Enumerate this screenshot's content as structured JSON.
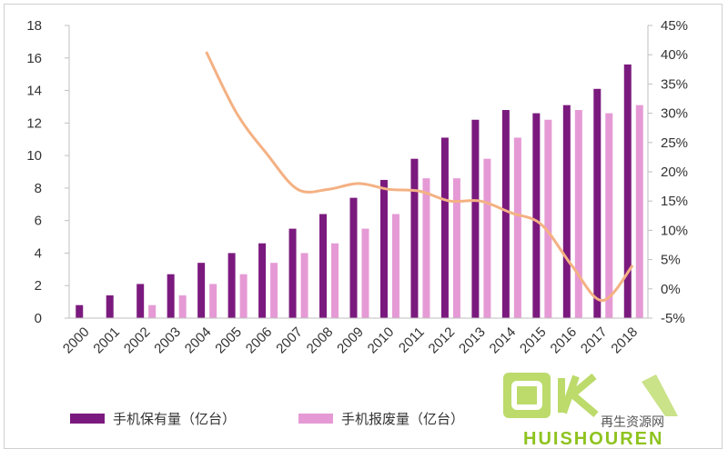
{
  "chart_data": {
    "type": "bar",
    "categories": [
      "2000",
      "2001",
      "2002",
      "2003",
      "2004",
      "2005",
      "2006",
      "2007",
      "2008",
      "2009",
      "2010",
      "2011",
      "2012",
      "2013",
      "2014",
      "2015",
      "2016",
      "2017",
      "2018"
    ],
    "series": [
      {
        "name": "手机保有量（亿台）",
        "type": "bar",
        "axis": "left",
        "color": "#7b1a7e",
        "values": [
          0.8,
          1.4,
          2.1,
          2.7,
          3.4,
          4.0,
          4.6,
          5.5,
          6.4,
          7.4,
          8.5,
          9.8,
          11.1,
          12.2,
          12.8,
          12.6,
          13.1,
          14.1,
          15.6
        ]
      },
      {
        "name": "手机报废量（亿台）",
        "type": "bar",
        "axis": "left",
        "color": "#e59ad5",
        "values": [
          0,
          0,
          0.8,
          1.4,
          2.1,
          2.7,
          3.4,
          4.0,
          4.6,
          5.5,
          6.4,
          8.6,
          8.6,
          9.8,
          11.1,
          12.2,
          12.8,
          12.6,
          13.1
        ]
      },
      {
        "name": "",
        "type": "line",
        "axis": "right",
        "color": "#f4b183",
        "x": [
          "2004",
          "2005",
          "2006",
          "2007",
          "2008",
          "2009",
          "2010",
          "2011",
          "2012",
          "2013",
          "2014",
          "2015",
          "2016",
          "2017",
          "2018"
        ],
        "values": [
          40.5,
          30.0,
          23.0,
          17.0,
          17.0,
          18.0,
          17.0,
          16.7,
          15.0,
          15.0,
          13.0,
          11.0,
          4.0,
          -2.0,
          4.0
        ]
      }
    ],
    "ylim": [
      0,
      18
    ],
    "yticks": [
      "0",
      "2",
      "4",
      "6",
      "8",
      "10",
      "12",
      "14",
      "16",
      "18"
    ],
    "y2lim": [
      -5,
      45
    ],
    "y2ticks": [
      "-5%",
      "0%",
      "5%",
      "10%",
      "15%",
      "20%",
      "25%",
      "30%",
      "35%",
      "40%",
      "45%"
    ],
    "grid": false,
    "legend_position": "bottom",
    "title": "",
    "xlabel": "",
    "ylabel": ""
  },
  "legend": {
    "item1": "手机保有量（亿台）",
    "item2": "手机报废量（亿台）"
  },
  "watermark": {
    "text": "HUISHOUREN",
    "site": "再生资源网"
  }
}
